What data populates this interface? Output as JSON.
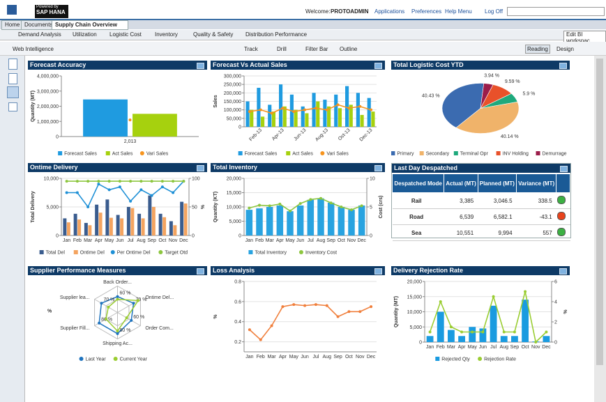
{
  "header": {
    "logo_line1": "Powered by",
    "logo_line2": "SAP HANA",
    "welcome": "Welcome:",
    "user": "PROTOADMIN",
    "links": [
      "Applications",
      "Preferences",
      "Help Menu",
      "Log Off"
    ]
  },
  "tabs": [
    "Home",
    "Documents",
    "Supply Chain Overview"
  ],
  "subtabs": [
    "Demand Analysis",
    "Utilization",
    "Logistic Cost",
    "Inventory",
    "Quality & Safety",
    "Distribution Performance"
  ],
  "edit_button": "Edit BI workspac",
  "toolbar": {
    "menu": "Web Intelligence",
    "buttons": [
      "Track",
      "Drill",
      "Filter Bar",
      "Outline"
    ],
    "modes": [
      "Reading",
      "Design"
    ]
  },
  "chart_data": [
    {
      "type": "bar",
      "title": "Forecast Accuracy",
      "y_label": "Quantity (MT)",
      "categories": [
        "2,013"
      ],
      "series": [
        {
          "name": "Forecast Sales",
          "color": "#1f9be0",
          "kind": "bar",
          "values": [
            2450000
          ]
        },
        {
          "name": "Act Sales",
          "color": "#a6d10e",
          "kind": "bar",
          "values": [
            1500000
          ]
        },
        {
          "name": "Vari Sales",
          "color": "#f7941d",
          "kind": "line",
          "values": [
            1100000
          ]
        }
      ],
      "ylim": [
        0,
        4000000
      ],
      "yticks": [
        0,
        {
          "value": 1000000,
          "label": "1,000,000"
        },
        {
          "value": 2000000,
          "label": "2,000,000"
        },
        {
          "value": 3000000,
          "label": "3,000,000"
        },
        {
          "value": 4000000,
          "label": "4,000,000"
        }
      ],
      "grid": false
    },
    {
      "type": "bar",
      "title": "Forecast Vs Actual Sales",
      "y_label": "Sales",
      "categories": [
        null,
        "Feb-13",
        null,
        "Apr-13",
        null,
        "Jun-13",
        null,
        "Aug-13",
        null,
        "Oct-13",
        null,
        "Dec-13"
      ],
      "series": [
        {
          "name": "Forecast Sales",
          "color": "#1f9be0",
          "kind": "bar",
          "values": [
            150000,
            230000,
            130000,
            250000,
            190000,
            120000,
            200000,
            160000,
            190000,
            240000,
            200000,
            170000
          ]
        },
        {
          "name": "Act Sales",
          "color": "#a6d10e",
          "kind": "bar",
          "values": [
            100000,
            60000,
            90000,
            120000,
            100000,
            80000,
            150000,
            120000,
            110000,
            130000,
            70000,
            90000
          ]
        },
        {
          "name": "Vari Sales",
          "color": "#f7941d",
          "kind": "line",
          "values": [
            90000,
            100000,
            80000,
            110000,
            90000,
            100000,
            110000,
            100000,
            130000,
            110000,
            120000,
            100000
          ]
        }
      ],
      "ylim": [
        0,
        300000
      ],
      "yticks": [
        0,
        {
          "value": 50000,
          "label": "50,000"
        },
        {
          "value": 100000,
          "label": "100,000"
        },
        {
          "value": 150000,
          "label": "150,000"
        },
        {
          "value": 200000,
          "label": "200,000"
        },
        {
          "value": 250000,
          "label": "250,000"
        },
        {
          "value": 300000,
          "label": "300,000"
        }
      ],
      "grid": true
    },
    {
      "type": "pie",
      "title": "Total Logistic Cost YTD",
      "categories": [
        "Primary",
        "Secondary",
        "Terminal Opr",
        "INV Holding",
        "Demurrage"
      ],
      "values": [
        40.43,
        40.14,
        5.9,
        9.59,
        3.94
      ],
      "value_labels": [
        "40.43 %",
        "40.14 %",
        "5.9 %",
        "9.59 %",
        "3.94 %"
      ],
      "colors": [
        "#3b6bb0",
        "#f0b36a",
        "#1ea97c",
        "#e8512a",
        "#9b1d4a"
      ]
    },
    {
      "type": "bar",
      "title": "Ontime Delivery",
      "y_label": "Total Delivery",
      "y2_label": "%",
      "categories": [
        "Jan",
        "Feb",
        "Mar",
        "Apr",
        "May",
        "Jun",
        "Jul",
        "Aug",
        "Sep",
        "Oct",
        "Nov",
        "Dec"
      ],
      "series": [
        {
          "name": "Total Del",
          "color": "#3a5c8e",
          "kind": "bar",
          "values": [
            3000,
            3800,
            2200,
            5400,
            6300,
            3600,
            5000,
            3800,
            7000,
            3800,
            2500,
            5900
          ]
        },
        {
          "name": "Ontime Del",
          "color": "#f4a460",
          "kind": "bar",
          "values": [
            2300,
            2800,
            1800,
            4000,
            3100,
            3000,
            4800,
            3000,
            5000,
            3200,
            1800,
            5600
          ]
        },
        {
          "name": "Per Ontime Del",
          "color": "#1e90d6",
          "kind": "line",
          "axis": "y2",
          "values": [
            75,
            75,
            50,
            90,
            80,
            85,
            60,
            80,
            70,
            85,
            75,
            95
          ]
        },
        {
          "name": "Target Otd",
          "color": "#8dc63f",
          "kind": "line",
          "axis": "y2",
          "values": [
            95,
            95,
            95,
            95,
            95,
            95,
            95,
            95,
            95,
            95,
            95,
            95
          ]
        }
      ],
      "ylim": [
        0,
        10000
      ],
      "yticks": [
        0,
        {
          "value": 5000,
          "label": "5,000"
        },
        {
          "value": 10000,
          "label": "10,000"
        }
      ],
      "y2lim": [
        0,
        100
      ],
      "y2ticks": [
        0,
        50,
        100
      ],
      "grid": true
    },
    {
      "type": "bar",
      "title": "Total Inventory",
      "y_label": "Quantity (KT)",
      "y2_label": "Cost (crs)",
      "categories": [
        "Jan",
        "Feb",
        "Mar",
        "Apr",
        "May",
        "Jun",
        "Jul",
        "Aug",
        "Sep",
        "Oct",
        "Nov",
        "Dec"
      ],
      "series": [
        {
          "name": "Total Inventory",
          "color": "#29a3e0",
          "kind": "bar",
          "values": [
            9000,
            9500,
            10000,
            10500,
            8500,
            10500,
            12500,
            13000,
            11500,
            10000,
            9000,
            10500
          ]
        },
        {
          "name": "Inventory Cost",
          "color": "#8dc63f",
          "kind": "line",
          "axis": "y2",
          "values": [
            4.8,
            5.3,
            5.2,
            5.5,
            4.3,
            5.6,
            6.3,
            6.5,
            5.7,
            5.0,
            4.5,
            5.2
          ]
        }
      ],
      "ylim": [
        0,
        20000
      ],
      "yticks": [
        0,
        {
          "value": 5000,
          "label": "5,000"
        },
        {
          "value": 10000,
          "label": "10,000"
        },
        {
          "value": 15000,
          "label": "15,000"
        },
        {
          "value": 20000,
          "label": "20,000"
        }
      ],
      "y2lim": [
        0,
        10
      ],
      "y2ticks": [
        0,
        5,
        10
      ],
      "grid": true
    },
    {
      "type": "radar",
      "title": "Supplier Performance Measures",
      "y_label": "%",
      "categories": [
        "Back Order...",
        "Ontime Del...",
        "Order Com...",
        "Shipping Ac...",
        "Supplier Fill...",
        "Supplier lea..."
      ],
      "series": [
        {
          "name": "Last Year",
          "color": "#1e73be",
          "values": [
            60,
            70,
            60,
            80,
            80,
            70
          ],
          "value_labels": [
            "60 %",
            "70 %",
            "60 %",
            "80 %",
            "80 %",
            "70 %"
          ]
        },
        {
          "name": "Current Year",
          "color": "#9acd32",
          "values": [
            50,
            90,
            40,
            70,
            50,
            40
          ]
        }
      ],
      "rlim": [
        0,
        100
      ]
    },
    {
      "type": "line",
      "title": "Loss Analysis",
      "y_label": "%",
      "categories": [
        "Jan",
        "Feb",
        "Mar",
        "Apr",
        "May",
        "Jun",
        "Jul",
        "Aug",
        "Sep",
        "Oct",
        "Nov",
        "Dec"
      ],
      "series": [
        {
          "color": "#f07f3c",
          "kind": "line",
          "values": [
            0.32,
            0.22,
            0.36,
            0.55,
            0.57,
            0.56,
            0.57,
            0.56,
            0.45,
            0.5,
            0.5,
            0.55
          ]
        }
      ],
      "ylim": [
        0.1,
        0.8
      ],
      "yticks": [
        0.2,
        0.4,
        0.6,
        0.8
      ],
      "grid": true
    },
    {
      "type": "bar",
      "title": "Delivery Rejection Rate",
      "y_label": "Quantity (MT)",
      "y2_label": "%",
      "categories": [
        "Jan",
        "Feb",
        "Mar",
        "Apr",
        "May",
        "Jun",
        "Jul",
        "Aug",
        "Sep",
        "Oct",
        "Nov",
        "Dec"
      ],
      "series": [
        {
          "name": "Rejected Qty",
          "color": "#1a9be0",
          "kind": "bar",
          "values": [
            2000,
            10000,
            4000,
            2000,
            5000,
            4500,
            12000,
            2000,
            2000,
            14000,
            200,
            2000
          ]
        },
        {
          "name": "Rejection Rate",
          "color": "#9acd32",
          "kind": "line",
          "axis": "y2",
          "values": [
            1,
            4,
            1.5,
            1,
            1,
            1,
            4.5,
            1,
            1,
            5,
            0,
            1
          ]
        }
      ],
      "ylim": [
        0,
        20000
      ],
      "yticks": [
        0,
        {
          "value": 5000,
          "label": "5,000"
        },
        {
          "value": 10000,
          "label": "10,000"
        },
        {
          "value": 15000,
          "label": "15,000"
        },
        {
          "value": 20000,
          "label": "20,000"
        }
      ],
      "y2lim": [
        0,
        6
      ],
      "y2ticks": [
        0,
        2,
        4,
        6
      ],
      "grid": true
    }
  ],
  "table": {
    "title": "Last Day Despatched",
    "columns": [
      "Despatched Mode",
      "Actual (MT)",
      "Planned (MT)",
      "Variance (MT)"
    ],
    "rows": [
      [
        "Rail",
        "3,385",
        "3,046.5",
        "338.5"
      ],
      [
        "Road",
        "6,539",
        "6,582.1",
        "-43.1"
      ],
      [
        "Sea",
        "10,551",
        "9,994",
        "557"
      ]
    ],
    "status": [
      "#3cb043",
      "#e8431c",
      "#3cb043"
    ]
  }
}
